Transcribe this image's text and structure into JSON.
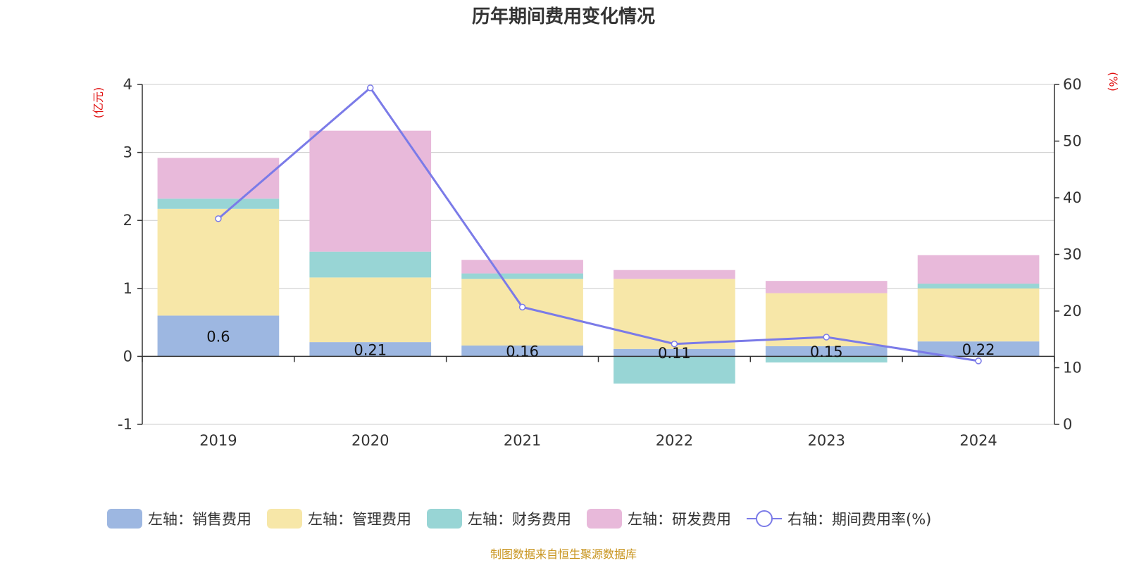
{
  "chart_data": {
    "type": "bar",
    "title": "历年期间费用变化情况",
    "source": "制图数据来自恒生聚源数据库",
    "categories": [
      "2019",
      "2020",
      "2021",
      "2022",
      "2023",
      "2024"
    ],
    "left_axis": {
      "unit": "(亿元)",
      "ylim": [
        -1,
        4
      ],
      "ticks": [
        -1,
        0,
        1,
        2,
        3,
        4
      ]
    },
    "right_axis": {
      "unit": "(%)",
      "ylim": [
        0,
        60
      ],
      "ticks": [
        0,
        10,
        20,
        30,
        40,
        50,
        60
      ]
    },
    "series": [
      {
        "name": "左轴：销售费用",
        "type": "bar",
        "axis": "left",
        "color": "#9db7e1",
        "values": [
          0.6,
          0.21,
          0.16,
          0.11,
          0.15,
          0.22
        ],
        "labels": [
          "0.6",
          "0.21",
          "0.16",
          "0.11",
          "0.15",
          "0.22"
        ]
      },
      {
        "name": "左轴：管理费用",
        "type": "bar",
        "axis": "left",
        "color": "#f7e7a8",
        "values": [
          1.57,
          0.95,
          0.98,
          1.03,
          0.78,
          0.78
        ]
      },
      {
        "name": "左轴：财务费用",
        "type": "bar",
        "axis": "left",
        "color": "#98d5d5",
        "values": [
          0.15,
          0.38,
          0.08,
          -0.4,
          -0.09,
          0.07
        ]
      },
      {
        "name": "左轴：研发费用",
        "type": "bar",
        "axis": "left",
        "color": "#e8b9da",
        "values": [
          0.6,
          1.78,
          0.2,
          0.13,
          0.18,
          0.42
        ]
      },
      {
        "name": "右轴：期间费用率(%)",
        "type": "line",
        "axis": "right",
        "color": "#7b7be8",
        "values": [
          36.3,
          59.4,
          20.7,
          14.2,
          15.4,
          11.2
        ]
      }
    ]
  }
}
